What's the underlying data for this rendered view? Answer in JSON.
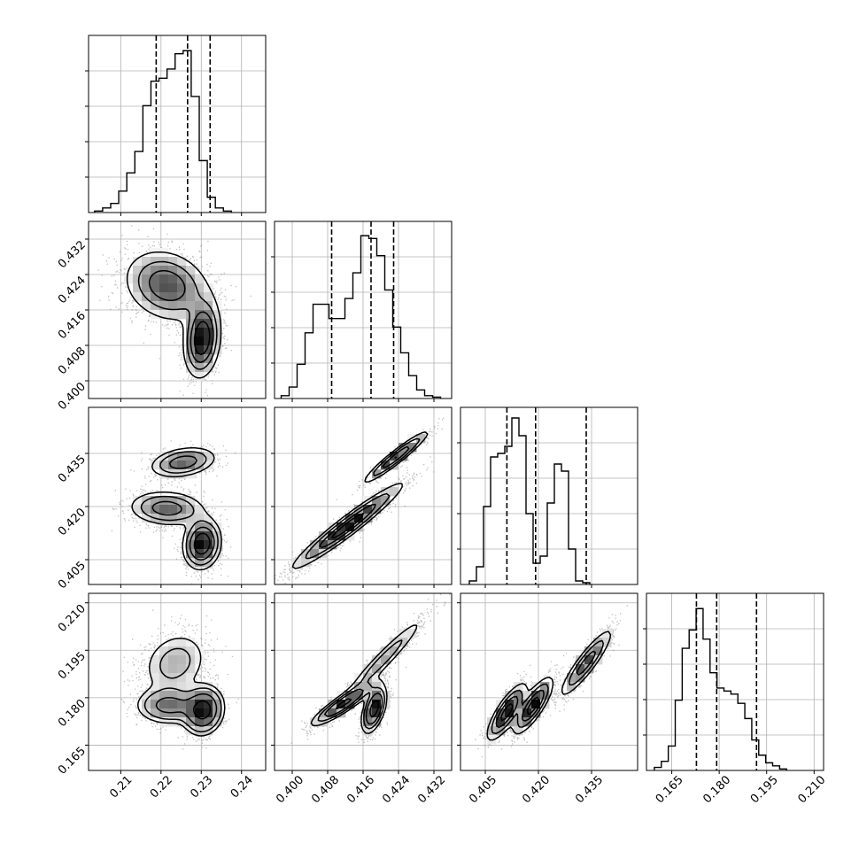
{
  "chart_data": {
    "type": "corner",
    "params": [
      {
        "range": [
          0.202,
          0.246
        ],
        "ticks": [
          0.21,
          0.22,
          0.23,
          0.24
        ],
        "tick_labels": [
          "0.21",
          "0.22",
          "0.23",
          "0.24"
        ],
        "quantiles": [
          0.2188,
          0.2266,
          0.2322
        ],
        "hist": {
          "edges_start": 0.2035,
          "bin_width": 0.002,
          "counts": [
            0.5,
            1.5,
            3,
            7,
            13,
            20,
            35,
            43,
            44,
            47,
            52,
            53,
            38,
            17,
            5,
            1.5,
            0.5
          ]
        },
        "hist_max": 58
      },
      {
        "range": [
          0.396,
          0.436
        ],
        "ticks": [
          0.4,
          0.408,
          0.416,
          0.424,
          0.432
        ],
        "tick_labels": [
          "0.400",
          "0.408",
          "0.416",
          "0.424",
          "0.432"
        ],
        "quantiles": [
          0.4089,
          0.4178,
          0.4229
        ],
        "hist": {
          "edges_start": 0.3975,
          "bin_width": 0.0018,
          "counts": [
            1,
            4,
            12,
            23,
            33,
            33,
            28,
            28,
            35,
            44,
            57,
            56,
            50,
            38,
            25,
            16,
            8,
            3,
            1,
            0.5
          ]
        },
        "hist_max": 62
      },
      {
        "range": [
          0.398,
          0.448
        ],
        "ticks": [
          0.405,
          0.42,
          0.435
        ],
        "tick_labels": [
          "0.405",
          "0.420",
          "0.435"
        ],
        "quantiles": [
          0.4111,
          0.4192,
          0.4335
        ],
        "hist": {
          "edges_start": 0.4005,
          "bin_width": 0.002,
          "counts": [
            1,
            5,
            22,
            36,
            37,
            39,
            47,
            42,
            20,
            6,
            8,
            23,
            34,
            32,
            10,
            1,
            0.5
          ]
        },
        "hist_max": 50
      },
      {
        "range": [
          0.157,
          0.213
        ],
        "ticks": [
          0.165,
          0.18,
          0.195,
          0.21
        ],
        "tick_labels": [
          "0.165",
          "0.180",
          "0.195",
          "0.210"
        ],
        "quantiles": [
          0.1728,
          0.1792,
          0.1918
        ],
        "hist": {
          "edges_start": 0.1595,
          "bin_width": 0.0022,
          "counts": [
            1,
            3,
            8,
            23,
            40,
            46,
            53,
            43,
            32,
            27,
            26,
            25,
            22,
            17,
            10,
            5,
            2.5,
            1.5,
            0.5
          ]
        },
        "hist_max": 58
      }
    ],
    "panels_2d": [
      {
        "x": 0,
        "y": 1,
        "modes": [
          {
            "cx": 0.2215,
            "cy": 0.4215,
            "sx": 0.0055,
            "sy": 0.0042,
            "rho": -0.2,
            "w": 0.6
          },
          {
            "cx": 0.2302,
            "cy": 0.4095,
            "sx": 0.0023,
            "sy": 0.0044,
            "rho": 0.15,
            "w": 0.4
          }
        ]
      },
      {
        "x": 0,
        "y": 2,
        "modes": [
          {
            "cx": 0.2255,
            "cy": 0.4325,
            "sx": 0.0042,
            "sy": 0.0022,
            "rho": 0.3,
            "w": 0.26
          },
          {
            "cx": 0.2215,
            "cy": 0.4195,
            "sx": 0.0048,
            "sy": 0.0025,
            "rho": -0.1,
            "w": 0.34
          },
          {
            "cx": 0.2302,
            "cy": 0.4095,
            "sx": 0.0023,
            "sy": 0.0035,
            "rho": 0.1,
            "w": 0.4
          }
        ]
      },
      {
        "x": 0,
        "y": 3,
        "modes": [
          {
            "cx": 0.2235,
            "cy": 0.191,
            "sx": 0.0045,
            "sy": 0.0055,
            "rho": 0.2,
            "w": 0.3
          },
          {
            "cx": 0.222,
            "cy": 0.1775,
            "sx": 0.0042,
            "sy": 0.003,
            "rho": 0.0,
            "w": 0.3
          },
          {
            "cx": 0.2305,
            "cy": 0.176,
            "sx": 0.0025,
            "sy": 0.0038,
            "rho": 0.1,
            "w": 0.4
          }
        ]
      },
      {
        "x": 1,
        "y": 2,
        "modes": [
          {
            "cx": 0.4235,
            "cy": 0.434,
            "sx": 0.0037,
            "sy": 0.0037,
            "rho": 0.95,
            "w": 0.26
          },
          {
            "cx": 0.4125,
            "cy": 0.4145,
            "sx": 0.0062,
            "sy": 0.006,
            "rho": 0.96,
            "w": 0.74
          }
        ]
      },
      {
        "x": 1,
        "y": 3,
        "modes": [
          {
            "cx": 0.4205,
            "cy": 0.192,
            "sx": 0.0052,
            "sy": 0.0075,
            "rho": 0.96,
            "w": 0.3
          },
          {
            "cx": 0.4115,
            "cy": 0.178,
            "sx": 0.0037,
            "sy": 0.0035,
            "rho": 0.9,
            "w": 0.35
          },
          {
            "cx": 0.4185,
            "cy": 0.1765,
            "sx": 0.0014,
            "sy": 0.0038,
            "rho": 0.5,
            "w": 0.35
          }
        ]
      },
      {
        "x": 2,
        "y": 3,
        "modes": [
          {
            "cx": 0.4335,
            "cy": 0.191,
            "sx": 0.0038,
            "sy": 0.0055,
            "rho": 0.9,
            "w": 0.3
          },
          {
            "cx": 0.4111,
            "cy": 0.1755,
            "sx": 0.0028,
            "sy": 0.0045,
            "rho": 0.8,
            "w": 0.35
          },
          {
            "cx": 0.4185,
            "cy": 0.1775,
            "sx": 0.0028,
            "sy": 0.0045,
            "rho": 0.8,
            "w": 0.35
          }
        ]
      }
    ],
    "grid": true,
    "colors": {
      "line": "#000000",
      "grid": "#b0b0b0",
      "scatter": "#888888"
    }
  }
}
